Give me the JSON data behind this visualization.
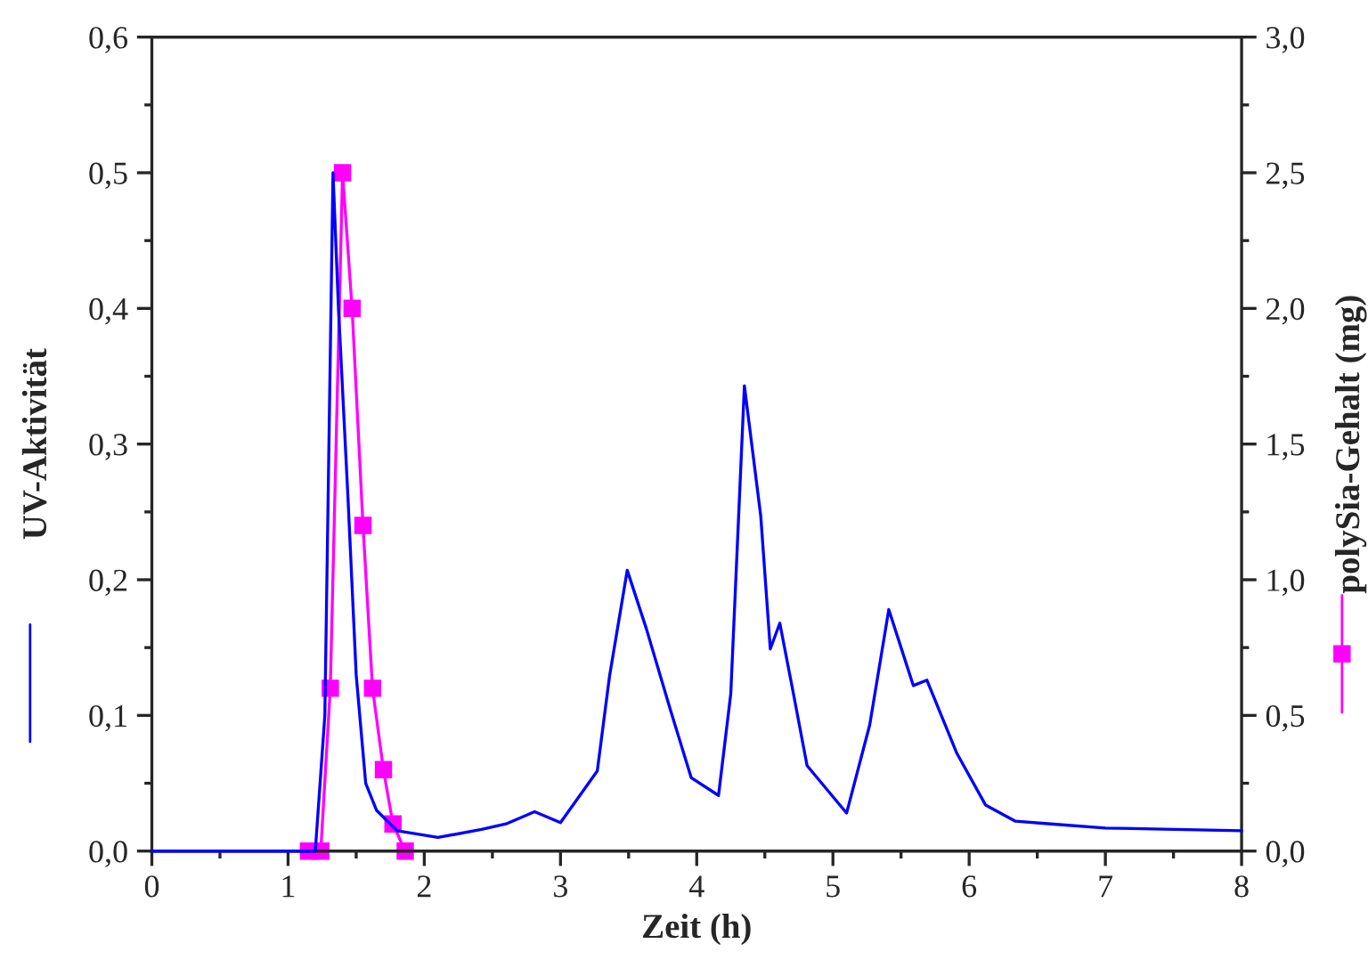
{
  "chart_data": {
    "type": "line",
    "xlabel": "Zeit (h)",
    "ylabel": "UV-Aktivität",
    "y2label": "polySia-Gehalt (mg)",
    "xlim": [
      0,
      8
    ],
    "xticks": [
      0,
      1,
      2,
      3,
      4,
      5,
      6,
      7,
      8
    ],
    "ylim": [
      0,
      0.6
    ],
    "yticks": [
      {
        "value": 0,
        "label": "0,0"
      },
      {
        "value": 0.1,
        "label": "0,1"
      },
      {
        "value": 0.2,
        "label": "0,2"
      },
      {
        "value": 0.3,
        "label": "0,3"
      },
      {
        "value": 0.4,
        "label": "0,4"
      },
      {
        "value": 0.5,
        "label": "0,5"
      },
      {
        "value": 0.6,
        "label": "0,6"
      }
    ],
    "y2lim": [
      0,
      3.0
    ],
    "y2ticks": [
      {
        "value": 0,
        "label": "0,0"
      },
      {
        "value": 0.5,
        "label": "0,5"
      },
      {
        "value": 1.0,
        "label": "1,0"
      },
      {
        "value": 1.5,
        "label": "1,5"
      },
      {
        "value": 2.0,
        "label": "2,0"
      },
      {
        "value": 2.5,
        "label": "2,5"
      },
      {
        "value": 3.0,
        "label": "3,0"
      }
    ],
    "grid": false,
    "legend": false,
    "series": [
      {
        "color": "#0000ff",
        "marker": "none",
        "x": [
          0,
          1.2,
          1.27,
          1.33,
          1.37,
          1.44,
          1.5,
          1.57,
          1.65,
          1.8,
          2.1,
          2.42,
          2.6,
          2.81,
          3.0,
          3.27,
          3.36,
          3.49,
          3.63,
          3.81,
          3.96,
          4.16,
          4.25,
          4.35,
          4.47,
          4.54,
          4.61,
          4.71,
          4.81,
          5.1,
          5.27,
          5.41,
          5.59,
          5.69,
          5.91,
          6.12,
          6.34,
          6.6,
          7.0,
          8.0
        ],
        "values": [
          0,
          0,
          0.1,
          0.5,
          0.4,
          0.26,
          0.13,
          0.05,
          0.03,
          0.015,
          0.01,
          0.016,
          0.02,
          0.029,
          0.021,
          0.059,
          0.129,
          0.207,
          0.164,
          0.103,
          0.054,
          0.041,
          0.116,
          0.343,
          0.247,
          0.149,
          0.168,
          0.116,
          0.063,
          0.028,
          0.093,
          0.178,
          0.122,
          0.126,
          0.072,
          0.034,
          0.022,
          0.02,
          0.017,
          0.015
        ]
      },
      {
        "color": "#ff00ff",
        "marker": "square",
        "axis": "y2",
        "x": [
          1.15,
          1.24,
          1.31,
          1.4,
          1.47,
          1.55,
          1.62,
          1.7,
          1.77,
          1.86
        ],
        "values": [
          0,
          0,
          0.6,
          2.5,
          2.0,
          1.2,
          0.6,
          0.3,
          0.1,
          0
        ]
      }
    ]
  }
}
